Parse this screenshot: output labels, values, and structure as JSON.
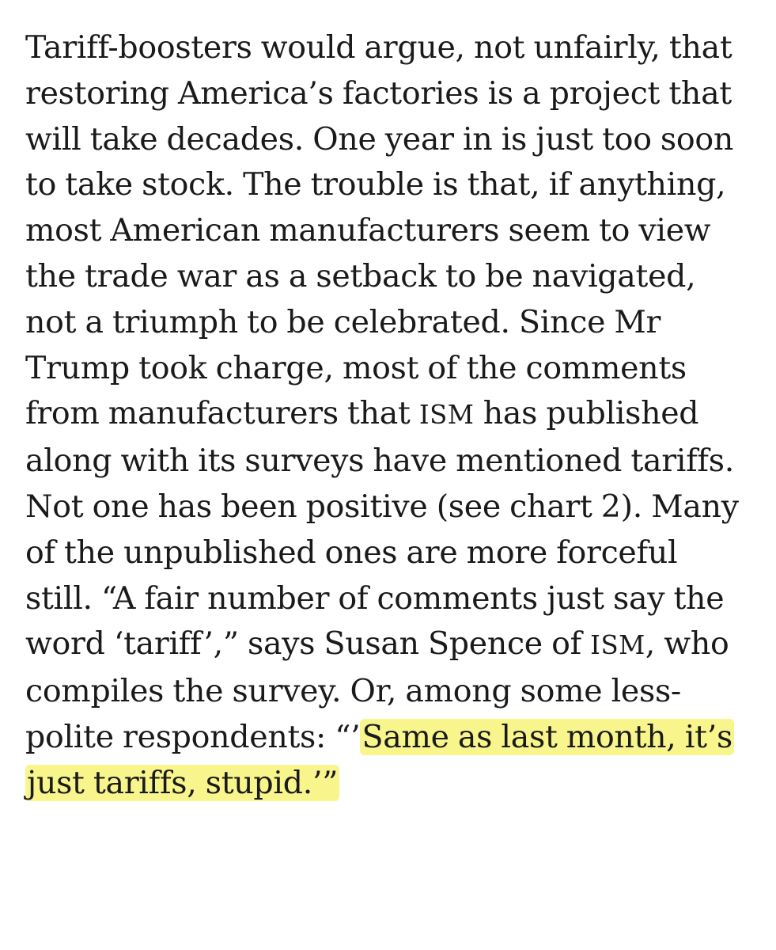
{
  "article": {
    "lines": [
      {
        "segments": [
          {
            "text": "Tariff-boosters would argue, not unfairly, that"
          }
        ]
      },
      {
        "segments": [
          {
            "text": "restoring America’s factories is a project that"
          }
        ]
      },
      {
        "segments": [
          {
            "text": "will take decades. One year in is just too soon"
          }
        ]
      },
      {
        "segments": [
          {
            "text": "to take stock. The trouble is that, if anything,"
          }
        ]
      },
      {
        "segments": [
          {
            "text": "most American manufacturers seem to view"
          }
        ]
      },
      {
        "segments": [
          {
            "text": "the trade war as a setback to be navigated,"
          }
        ]
      },
      {
        "segments": [
          {
            "text": "not a triumph to be celebrated. Since Mr"
          }
        ]
      },
      {
        "segments": [
          {
            "text": "Trump took charge, most of the comments"
          }
        ]
      },
      {
        "segments": [
          {
            "text": "from manufacturers that "
          },
          {
            "text": "ISM",
            "smallcaps": true
          },
          {
            "text": " has published"
          }
        ]
      },
      {
        "segments": [
          {
            "text": "along with its surveys have mentioned tariffs."
          }
        ]
      },
      {
        "segments": [
          {
            "text": "Not one has been positive (see chart 2). Many"
          }
        ]
      },
      {
        "segments": [
          {
            "text": "of the unpublished ones are more forceful"
          }
        ]
      },
      {
        "segments": [
          {
            "text": "still. “A fair number of comments just say the"
          }
        ]
      },
      {
        "segments": [
          {
            "text": "word ‘tariff’,” says Susan Spence of "
          },
          {
            "text": "ISM",
            "smallcaps": true
          },
          {
            "text": ", who"
          }
        ]
      },
      {
        "segments": [
          {
            "text": "compiles the survey. Or, among some less-"
          }
        ]
      },
      {
        "segments": [
          {
            "text": "polite respondents: “’"
          },
          {
            "text": "Same as last month, it’s",
            "highlight": true
          }
        ]
      },
      {
        "segments": [
          {
            "text": "just tariffs, stupid.’”",
            "highlight": true
          }
        ]
      }
    ]
  },
  "colors": {
    "text": "#1a1a1a",
    "highlight": "#f7f378",
    "background": "#ffffff"
  }
}
